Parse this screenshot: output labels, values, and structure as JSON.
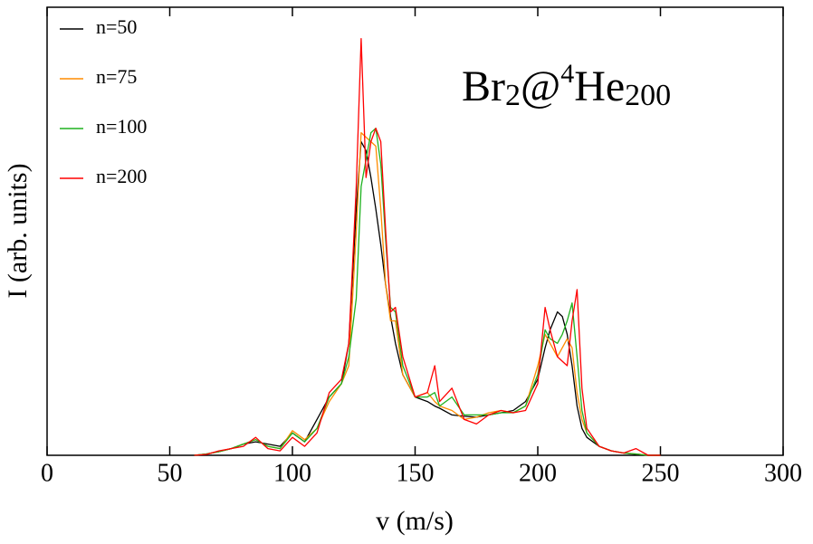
{
  "chart_data": {
    "type": "line",
    "x_label": "v (m/s)",
    "y_label": "I (arb. units)",
    "annotation": [
      {
        "text": "Br",
        "shift": "base"
      },
      {
        "text": "2",
        "shift": "sub"
      },
      {
        "text": "@",
        "shift": "base"
      },
      {
        "text": "4",
        "shift": "sup"
      },
      {
        "text": "He",
        "shift": "base"
      },
      {
        "text": "200",
        "shift": "sub"
      }
    ],
    "xlim": [
      0,
      300
    ],
    "xticks": [
      0,
      50,
      100,
      150,
      200,
      250,
      300
    ],
    "ylim": [
      0,
      100
    ],
    "legend": "top-left",
    "x": [
      60,
      65,
      70,
      75,
      80,
      85,
      90,
      95,
      100,
      105,
      110,
      115,
      120,
      123,
      126,
      128,
      130,
      132,
      134,
      136,
      138,
      140,
      142,
      145,
      150,
      155,
      158,
      160,
      165,
      170,
      175,
      180,
      185,
      190,
      195,
      200,
      203,
      205,
      208,
      210,
      212,
      214,
      216,
      218,
      220,
      225,
      230,
      235,
      240,
      245,
      250
    ],
    "series": [
      {
        "name": "n=50",
        "color": "#000000",
        "values": [
          0,
          0.3,
          0.8,
          1.5,
          2.5,
          3,
          2.5,
          2,
          5,
          3,
          8,
          13,
          16,
          25,
          55,
          70,
          68,
          62,
          55,
          47,
          38,
          31,
          25,
          18,
          13,
          12,
          11,
          10.5,
          9,
          8.7,
          8.5,
          9,
          9.5,
          10,
          12,
          17,
          24,
          28,
          32,
          31,
          27,
          20,
          11,
          6,
          4,
          2,
          1,
          0.5,
          0.2,
          0,
          0
        ]
      },
      {
        "name": "n=75",
        "color": "#ff8c00",
        "values": [
          0,
          0.3,
          0.8,
          1.5,
          2.5,
          3.5,
          2,
          1.5,
          5.5,
          3.5,
          6,
          12,
          16,
          20,
          50,
          72,
          71,
          70,
          69,
          55,
          38,
          30,
          30,
          18,
          13,
          14,
          12,
          11,
          10,
          8,
          8.5,
          9.5,
          10,
          9.5,
          11,
          20,
          27,
          25,
          22,
          24,
          26,
          24,
          14,
          8,
          5,
          2,
          1,
          0.5,
          0.3,
          0,
          0
        ]
      },
      {
        "name": "n=100",
        "color": "#1fb21f",
        "values": [
          0,
          0.3,
          0.8,
          1.5,
          2.5,
          3.5,
          2,
          1.5,
          5,
          3,
          6,
          13,
          16,
          22,
          35,
          60,
          66,
          72,
          73,
          65,
          48,
          33,
          32,
          20,
          13,
          13,
          14,
          11,
          13,
          9,
          9,
          9,
          9.5,
          9.5,
          11,
          18,
          28,
          26,
          25,
          27,
          30,
          34,
          22,
          10,
          5,
          2,
          1,
          0.5,
          0.3,
          0,
          0
        ]
      },
      {
        "name": "n=200",
        "color": "#ff0000",
        "values": [
          0,
          0.2,
          1,
          1.5,
          2,
          4,
          1.5,
          1,
          4,
          2,
          5,
          14,
          17,
          25,
          60,
          93,
          62,
          70,
          73,
          70,
          50,
          32,
          33,
          22,
          13,
          14,
          20,
          12,
          15,
          8,
          7,
          9,
          10,
          9.5,
          10,
          16,
          33,
          28,
          22,
          21,
          20,
          30,
          37,
          15,
          6,
          2,
          1,
          0.5,
          1.5,
          0,
          0
        ]
      }
    ]
  }
}
